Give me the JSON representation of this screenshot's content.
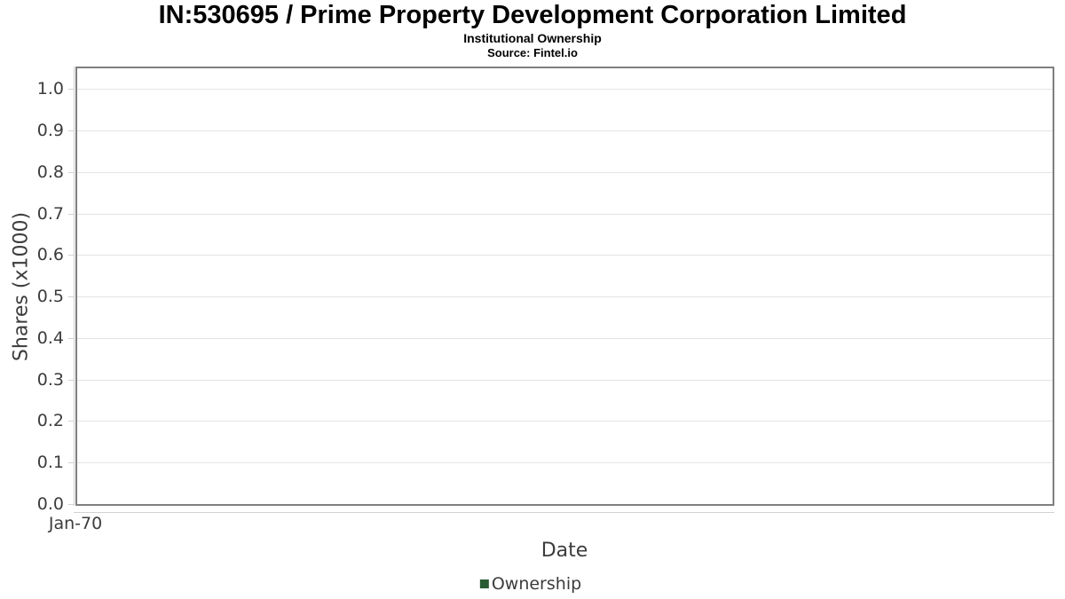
{
  "header": {
    "title": "IN:530695 / Prime Property Development Corporation Limited",
    "subtitle": "Institutional Ownership",
    "source": "Source: Fintel.io"
  },
  "chart_data": {
    "type": "line",
    "title": "IN:530695 / Prime Property Development Corporation Limited",
    "subtitle": "Institutional Ownership",
    "source": "Source: Fintel.io",
    "xlabel": "Date",
    "ylabel": "Shares (x1000)",
    "xticks": [
      "Jan-70"
    ],
    "yticks": [
      0.0,
      0.1,
      0.2,
      0.3,
      0.4,
      0.5,
      0.6,
      0.7,
      0.8,
      0.9,
      1.0
    ],
    "ylim": [
      0,
      1.05
    ],
    "grid": true,
    "legend_position": "bottom-center",
    "series": [
      {
        "name": "Ownership",
        "color": "#2a5c34",
        "x": [],
        "y": []
      }
    ],
    "note": "no data points plotted; chart area is empty"
  },
  "colors": {
    "background": "#ffffff",
    "plot_border": "#7f7f7f",
    "gridline": "#e4e4e4",
    "axis_line": "#d2d2d2",
    "tick_text": "#3c3c3c",
    "title_text": "#000000",
    "legend_marker": "#2a5c34"
  }
}
